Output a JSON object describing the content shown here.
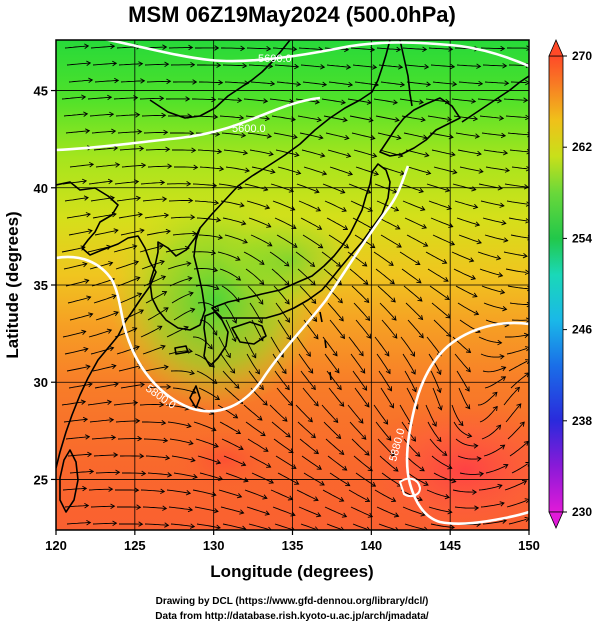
{
  "title": "MSM 06Z19May2024 (500.0hPa)",
  "xlabel": "Longitude (degrees)",
  "ylabel": "Latitude  (degrees)",
  "credits": [
    "Drawing by DCL (https://www.gfd-dennou.org/library/dcl/)",
    "Data from http://database.rish.kyoto-u.ac.jp/arch/jmadata/"
  ],
  "map": {
    "lon_range": [
      120,
      150
    ],
    "lat_range": [
      22.4,
      47.6
    ],
    "lon_ticks": [
      120,
      125,
      130,
      135,
      140,
      145,
      150
    ],
    "lat_ticks": [
      25,
      30,
      35,
      40,
      45
    ],
    "gridlines": true
  },
  "colorbar": {
    "ticks": [
      230,
      238,
      246,
      254,
      262,
      270
    ],
    "range": [
      230,
      270
    ],
    "unit_hint": "temperature (K)"
  },
  "contours": {
    "labels": [
      "5600.0",
      "5600.0",
      "5600.0",
      "5600.0",
      "5600.0",
      "5800.0",
      "5880.0"
    ],
    "color": "#ffffff"
  },
  "colors": {
    "cb_low": "#d81bd8",
    "cb_mid": "#22c84a",
    "cb_high": "#ff5522",
    "field_cold": "#1fe01f",
    "field_warm": "#ff6a2a",
    "coast": "#000000"
  }
}
